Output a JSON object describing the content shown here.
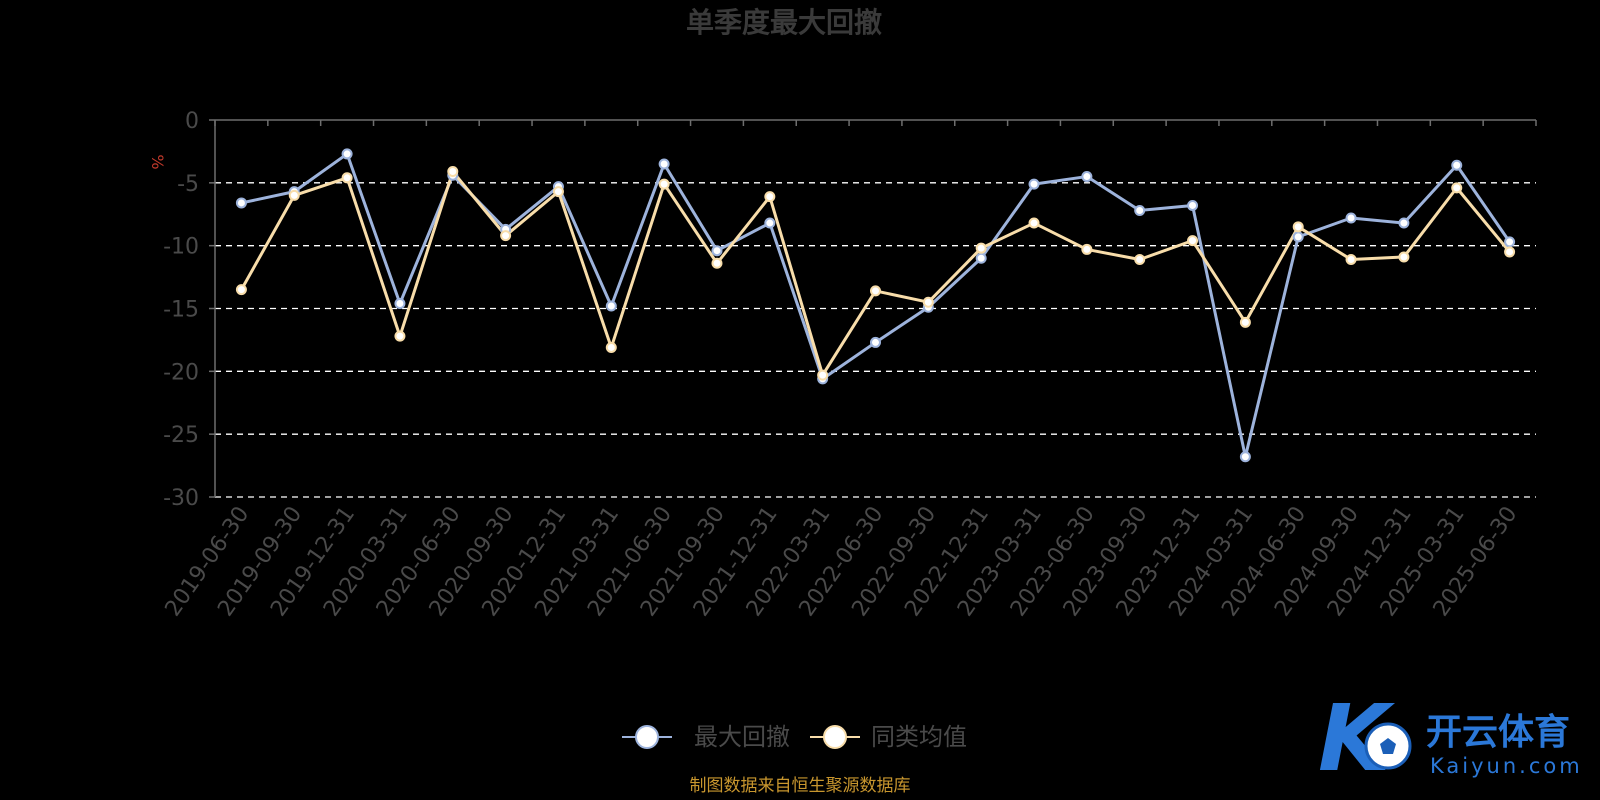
{
  "chart_data": {
    "type": "line",
    "title": "单季度最大回撤",
    "ylabel": "%",
    "ylim": [
      -30,
      0
    ],
    "yticks": [
      0,
      -5,
      -10,
      -15,
      -20,
      -25,
      -30
    ],
    "grid": true,
    "legend_position": "bottom-center",
    "x": [
      "2019-06-30",
      "2019-09-30",
      "2019-12-31",
      "2020-03-31",
      "2020-06-30",
      "2020-09-30",
      "2020-12-31",
      "2021-03-31",
      "2021-06-30",
      "2021-09-30",
      "2021-12-31",
      "2022-03-31",
      "2022-06-30",
      "2022-09-30",
      "2022-12-31",
      "2023-03-31",
      "2023-06-30",
      "2023-09-30",
      "2023-12-31",
      "2024-03-31",
      "2024-06-30",
      "2024-09-30",
      "2024-12-31",
      "2025-03-31",
      "2025-06-30"
    ],
    "series": [
      {
        "name": "最大回撤",
        "color": "#9db3dc",
        "values": [
          -6.6,
          -5.7,
          -2.7,
          -14.6,
          -4.4,
          -8.7,
          -5.3,
          -14.8,
          -3.5,
          -10.4,
          -8.2,
          -20.6,
          -17.7,
          -14.9,
          -11.0,
          -5.1,
          -4.5,
          -7.2,
          -6.8,
          -26.8,
          -9.3,
          -7.8,
          -8.2,
          -3.6,
          -9.7
        ]
      },
      {
        "name": "同类均值",
        "color": "#f8ddaa",
        "values": [
          -13.5,
          -6.0,
          -4.6,
          -17.2,
          -4.1,
          -9.2,
          -5.7,
          -18.1,
          -5.1,
          -11.4,
          -6.1,
          -20.3,
          -13.6,
          -14.5,
          -10.2,
          -8.2,
          -10.3,
          -11.1,
          -9.6,
          -16.1,
          -8.5,
          -11.1,
          -10.9,
          -5.4,
          -10.5
        ]
      }
    ]
  },
  "footer": "制图数据来自恒生聚源数据库",
  "watermark": {
    "cn": "开云体育",
    "en": "Kaiyun.com"
  }
}
